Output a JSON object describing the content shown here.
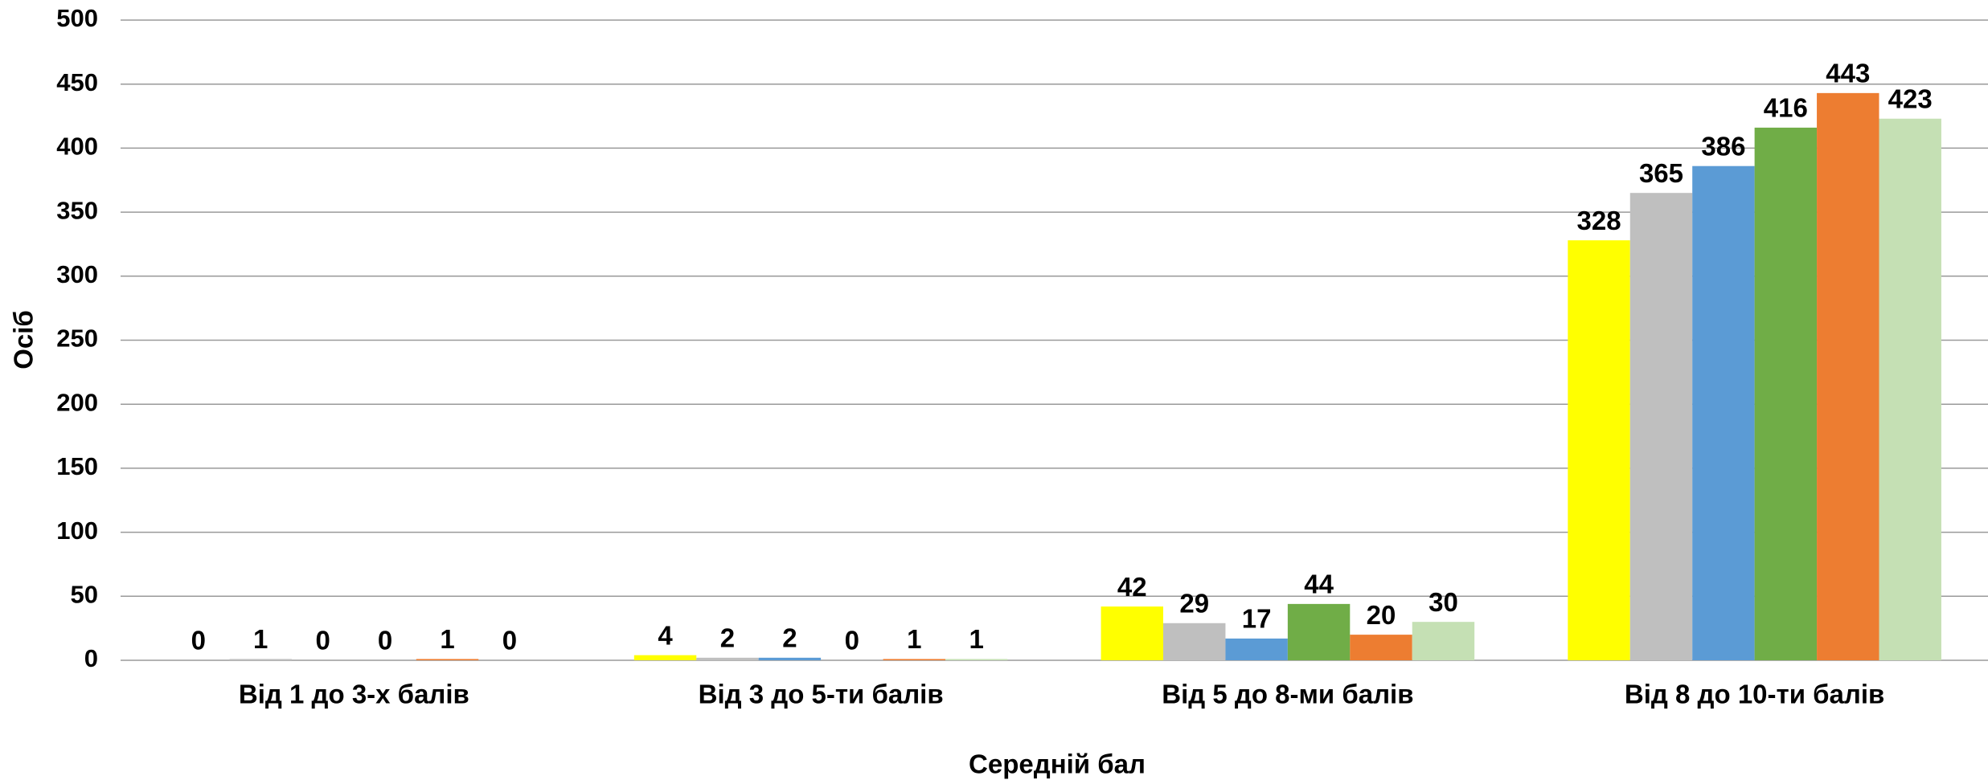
{
  "chart_data": {
    "type": "bar",
    "categories": [
      "Від 1 до 3-х балів",
      "Від 3 до 5-ти балів",
      "Від 5 до 8-ми балів",
      "Від 8 до 10-ти балів"
    ],
    "series": [
      {
        "color": "#ffff00",
        "values": [
          0,
          4,
          42,
          328
        ]
      },
      {
        "color": "#bfbfbf",
        "values": [
          1,
          2,
          29,
          365
        ]
      },
      {
        "color": "#5b9bd5",
        "values": [
          0,
          2,
          17,
          386
        ]
      },
      {
        "color": "#70ad47",
        "values": [
          0,
          0,
          44,
          416
        ]
      },
      {
        "color": "#ed7d31",
        "values": [
          1,
          1,
          20,
          443
        ]
      },
      {
        "color": "#c5e0b4",
        "values": [
          0,
          1,
          30,
          423
        ]
      }
    ],
    "ylabel": "Осіб",
    "xlabel": "Середній бал",
    "ylim": [
      0,
      500
    ],
    "yticks": [
      0,
      50,
      100,
      150,
      200,
      250,
      300,
      350,
      400,
      450,
      500
    ],
    "grid": true
  }
}
